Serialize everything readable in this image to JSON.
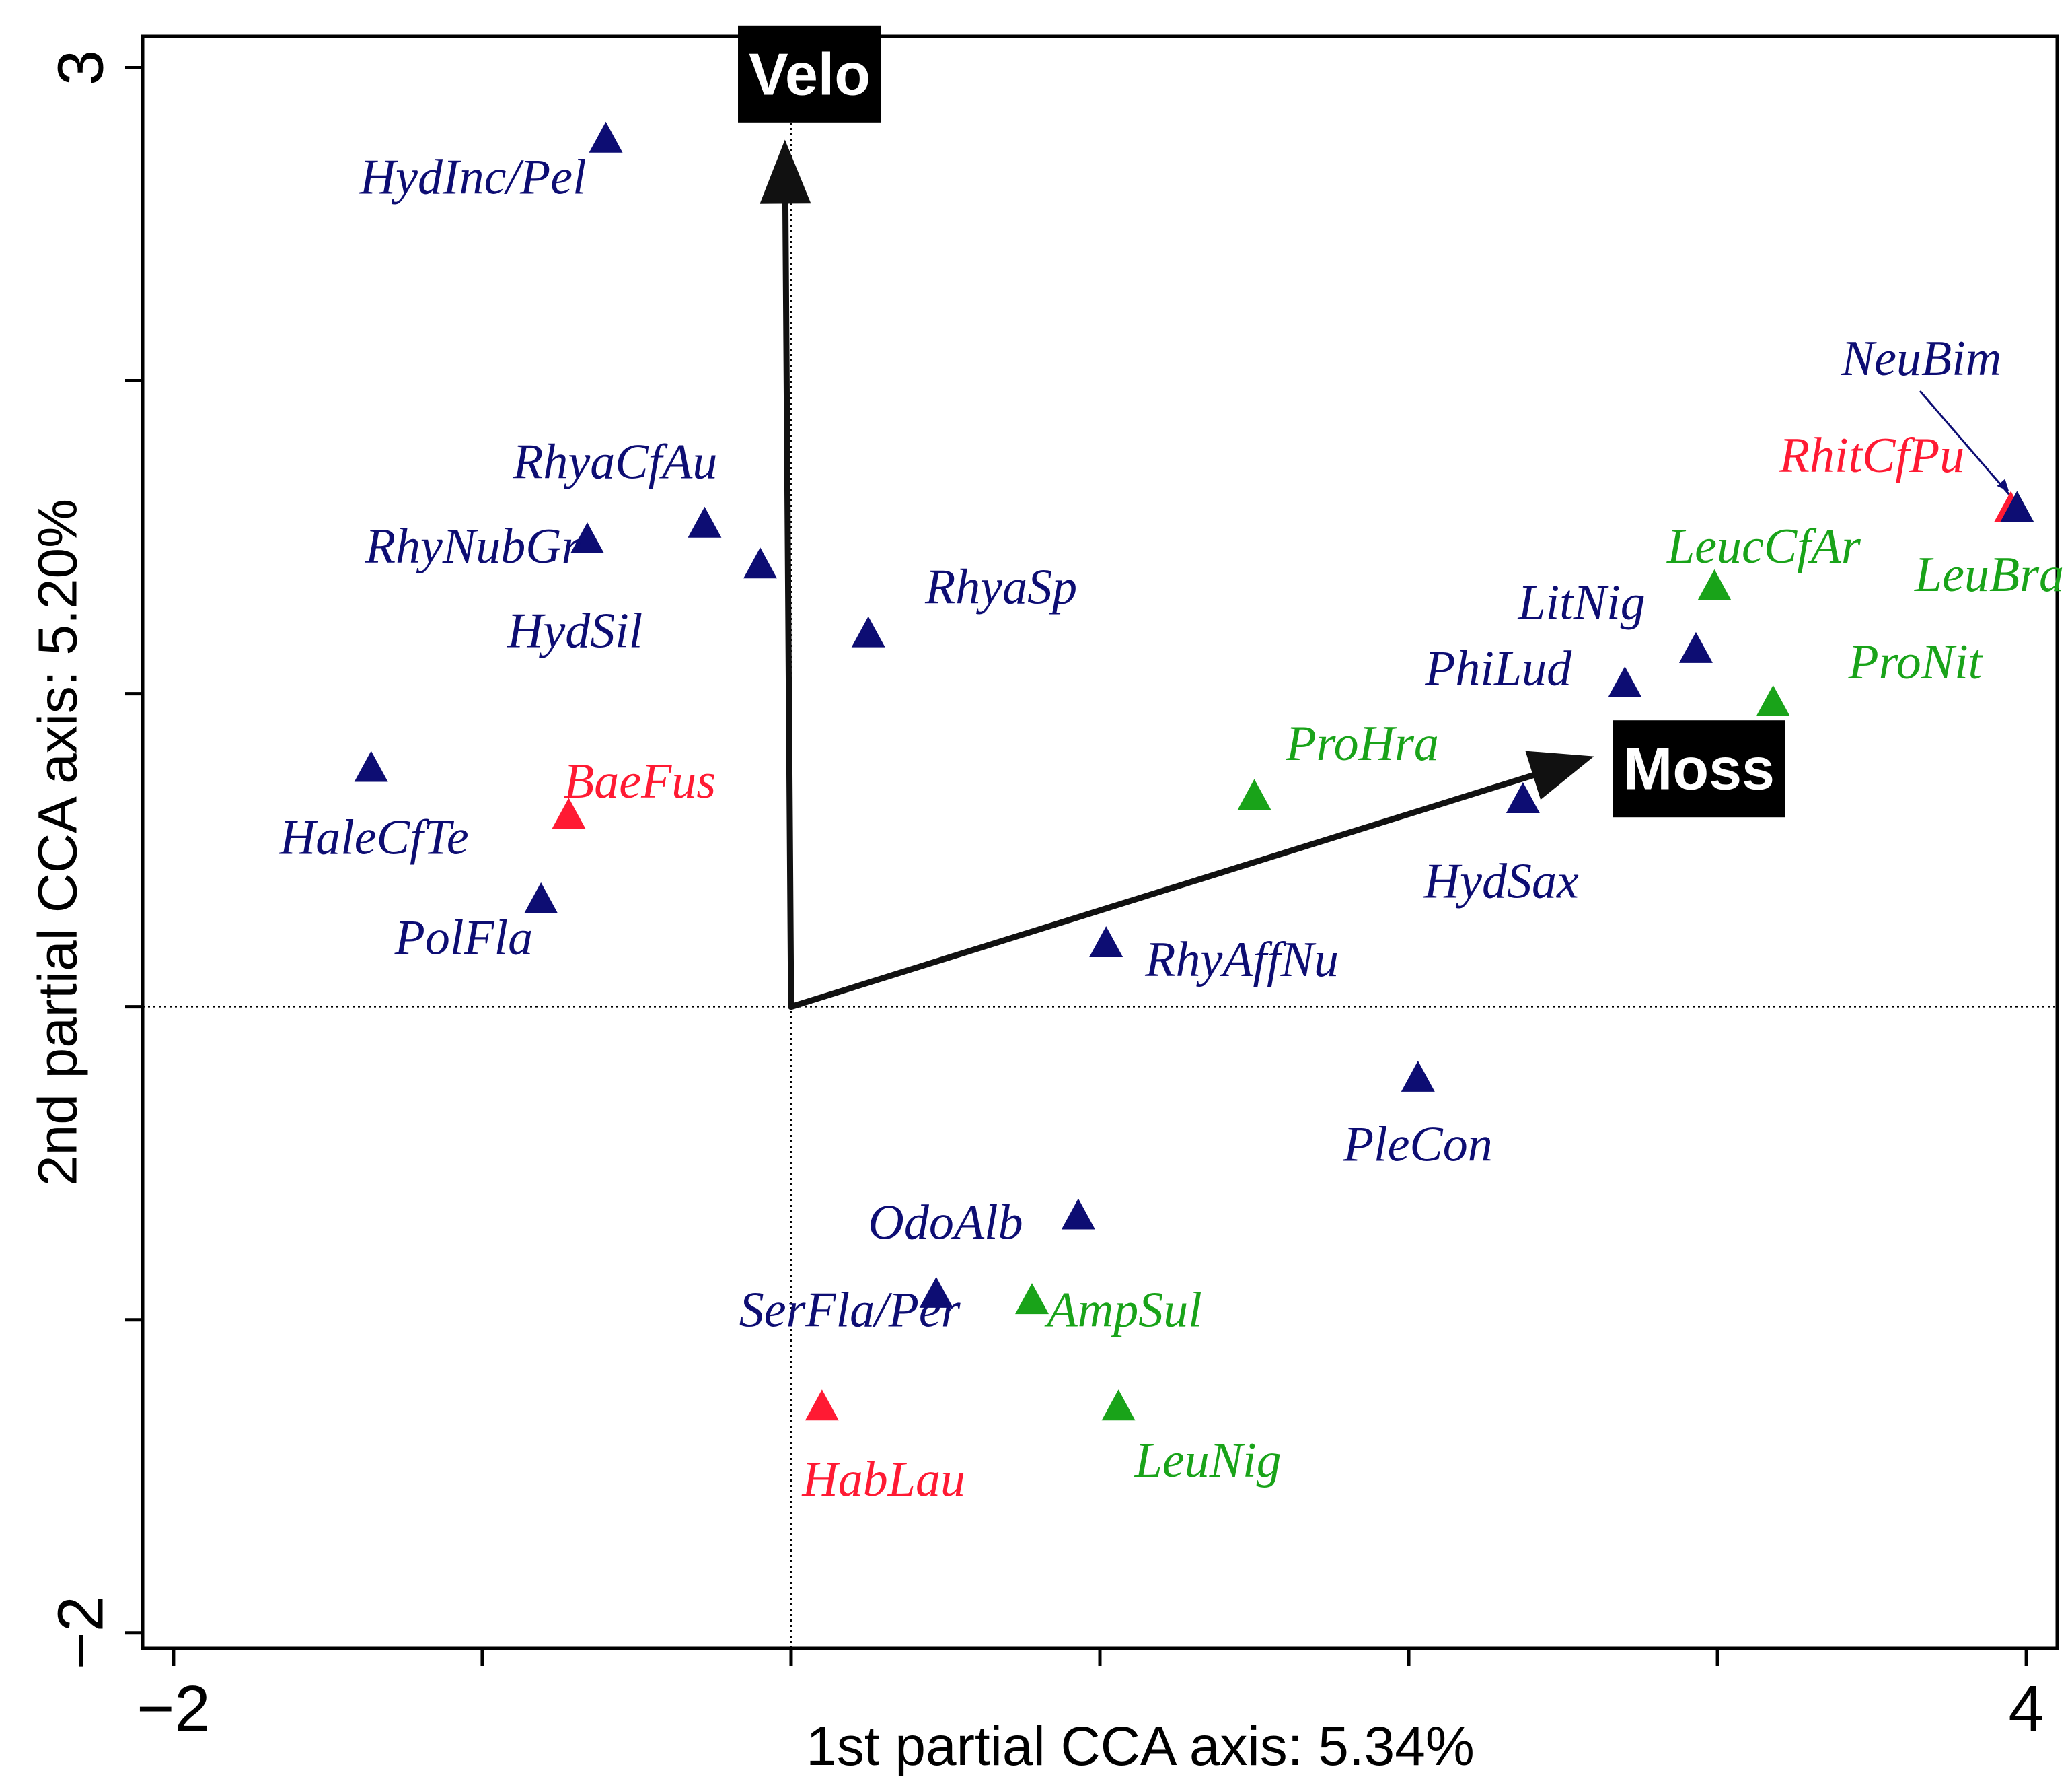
{
  "chart_data": {
    "type": "scatter",
    "subtype": "cca-biplot",
    "title": "",
    "xlabel": "1st partial CCA axis: 5.34%",
    "ylabel": "2nd partial CCA axis: 5.20%",
    "xlim": [
      -2.1,
      4.1
    ],
    "ylim": [
      -2.05,
      3.1
    ],
    "x_ticks": [
      -2,
      -1,
      0,
      1,
      2,
      3,
      4
    ],
    "y_ticks": [
      -2,
      -1,
      0,
      1,
      2,
      3
    ],
    "x_tick_labels": [
      {
        "value": -2,
        "text": "−2"
      },
      {
        "value": 4,
        "text": "4"
      }
    ],
    "y_tick_labels": [
      {
        "value": 3,
        "text": "3"
      },
      {
        "value": -2,
        "text": "−2"
      }
    ],
    "colors": {
      "blue": "#0d0d73",
      "red": "#ff1a33",
      "green": "#19a319",
      "arrow": "#111111"
    },
    "reference_lines": {
      "x": 0,
      "y": 0,
      "style": "dotted"
    },
    "environmental_vectors": [
      {
        "name": "Velo",
        "x": -0.02,
        "y": 2.77,
        "label_x": 0.06,
        "label_y": 2.98
      },
      {
        "name": "Moss",
        "x": 2.6,
        "y": 0.8,
        "label_x": 2.94,
        "label_y": 0.76
      }
    ],
    "species": [
      {
        "name": "HydInc/Pel",
        "x": -0.6,
        "y": 2.77,
        "color": "blue",
        "label_x": -1.03,
        "label_y": 2.65
      },
      {
        "name": "RhyaCfAu",
        "x": -0.28,
        "y": 1.54,
        "color": "blue",
        "label_x": -0.57,
        "label_y": 1.74
      },
      {
        "name": "RhyNubGr",
        "x": -0.66,
        "y": 1.49,
        "color": "blue",
        "label_x": -1.03,
        "label_y": 1.47
      },
      {
        "name": "HydSil",
        "x": -0.1,
        "y": 1.41,
        "color": "blue",
        "label_x": -0.7,
        "label_y": 1.2
      },
      {
        "name": "RhyaSp",
        "x": 0.25,
        "y": 1.19,
        "color": "blue",
        "label_x": 0.68,
        "label_y": 1.34
      },
      {
        "name": "HaleCfTe",
        "x": -1.36,
        "y": 0.76,
        "color": "blue",
        "label_x": -1.35,
        "label_y": 0.54
      },
      {
        "name": "BaeFus",
        "x": -0.72,
        "y": 0.61,
        "color": "red",
        "label_x": -0.49,
        "label_y": 0.72
      },
      {
        "name": "PolFla",
        "x": -0.81,
        "y": 0.34,
        "color": "blue",
        "label_x": -1.06,
        "label_y": 0.22
      },
      {
        "name": "ProHra",
        "x": 1.5,
        "y": 0.67,
        "color": "green",
        "label_x": 1.85,
        "label_y": 0.84
      },
      {
        "name": "HydSax",
        "x": 2.37,
        "y": 0.66,
        "color": "blue",
        "label_x": 2.3,
        "label_y": 0.4
      },
      {
        "name": "PhiLud",
        "x": 2.7,
        "y": 1.03,
        "color": "blue",
        "label_x": 2.29,
        "label_y": 1.08
      },
      {
        "name": "LitNig",
        "x": 2.93,
        "y": 1.14,
        "color": "blue",
        "label_x": 2.56,
        "label_y": 1.29
      },
      {
        "name": "LeucCfAr",
        "x": 2.99,
        "y": 1.34,
        "color": "green",
        "label_x": 3.15,
        "label_y": 1.47
      },
      {
        "name": "ProNit",
        "x": 3.18,
        "y": 0.97,
        "color": "green",
        "label_x": 3.64,
        "label_y": 1.1
      },
      {
        "name": "LeuBra",
        "x": 3.97,
        "y": 1.59,
        "color": "green",
        "label_x": 3.88,
        "label_y": 1.38
      },
      {
        "name": "RhitCfPu",
        "x": 3.95,
        "y": 1.59,
        "color": "red",
        "label_x": 3.5,
        "label_y": 1.76
      },
      {
        "name": "NeuBim",
        "x": 3.97,
        "y": 1.59,
        "color": "blue",
        "label_x": 3.66,
        "label_y": 2.07
      },
      {
        "name": "RhyAffNu",
        "x": 1.02,
        "y": 0.2,
        "color": "blue",
        "label_x": 1.46,
        "label_y": 0.15
      },
      {
        "name": "PleCon",
        "x": 2.03,
        "y": -0.23,
        "color": "blue",
        "label_x": 2.03,
        "label_y": -0.44
      },
      {
        "name": "OdoAlb",
        "x": 0.93,
        "y": -0.67,
        "color": "blue",
        "label_x": 0.5,
        "label_y": -0.69
      },
      {
        "name": "SerFla/Per",
        "x": 0.47,
        "y": -0.92,
        "color": "blue",
        "label_x": 0.19,
        "label_y": -0.97
      },
      {
        "name": "AmpSul",
        "x": 0.78,
        "y": -0.94,
        "color": "green",
        "label_x": 1.08,
        "label_y": -0.97
      },
      {
        "name": "HabLau",
        "x": 0.1,
        "y": -1.28,
        "color": "red",
        "label_x": 0.3,
        "label_y": -1.51
      },
      {
        "name": "LeuNig",
        "x": 1.06,
        "y": -1.28,
        "color": "green",
        "label_x": 1.35,
        "label_y": -1.45
      }
    ]
  }
}
